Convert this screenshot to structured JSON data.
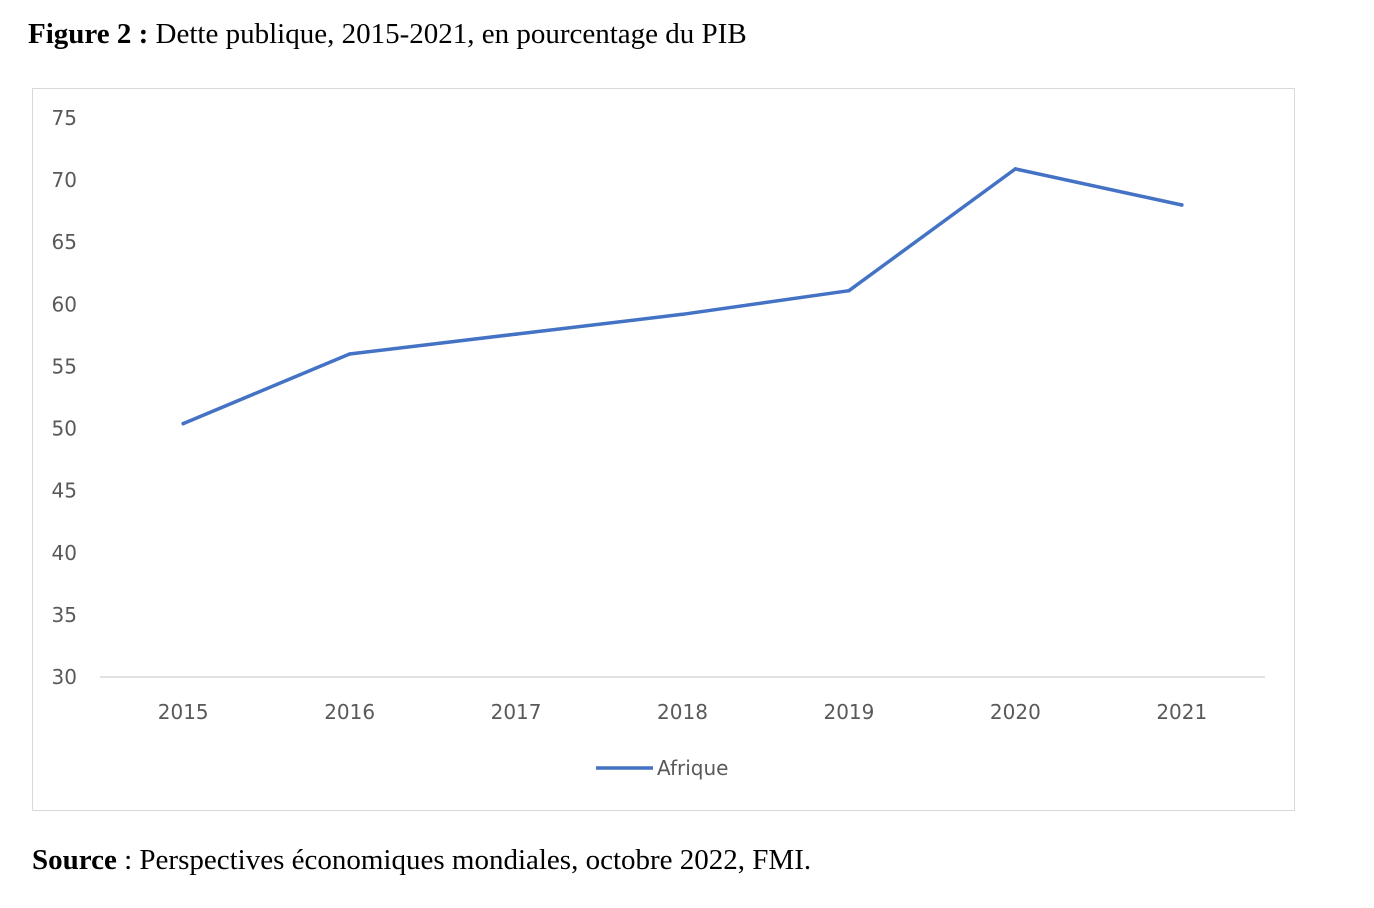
{
  "figure": {
    "label": "Figure 2 :",
    "caption": " Dette publique, 2015-2021, en pourcentage du PIB"
  },
  "source": {
    "label": "Source",
    "text": " : Perspectives économiques mondiales, octobre 2022, FMI."
  },
  "chart_data": {
    "type": "line",
    "title": "",
    "xlabel": "",
    "ylabel": "",
    "categories": [
      "2015",
      "2016",
      "2017",
      "2018",
      "2019",
      "2020",
      "2021"
    ],
    "ylim": [
      30,
      75
    ],
    "yticks": [
      30,
      35,
      40,
      45,
      50,
      55,
      60,
      65,
      70,
      75
    ],
    "grid": false,
    "legend_position": "bottom",
    "series": [
      {
        "name": "Afrique",
        "color": "#4472c4",
        "values": [
          50.4,
          56.0,
          57.6,
          59.2,
          61.1,
          70.9,
          68.0
        ]
      }
    ]
  }
}
